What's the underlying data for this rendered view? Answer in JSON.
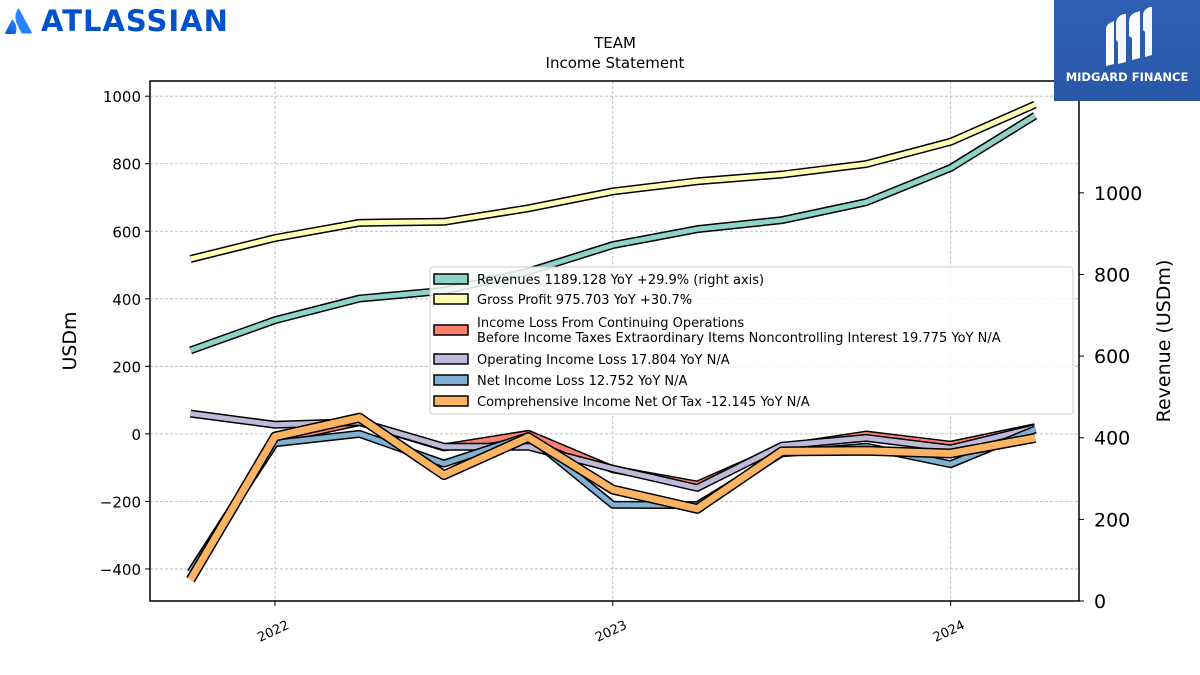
{
  "brand_left": {
    "name": "ATLASSIAN",
    "color": "#0052cc"
  },
  "brand_right": {
    "name": "MIDGARD FINANCE",
    "bg": "#2a58a8"
  },
  "chart_data": {
    "type": "line",
    "title": "TEAM",
    "subtitle": "Income Statement",
    "ylabel_left": "USDm",
    "ylabel_right": "Revenue (USDm)",
    "ylim_left": [
      -495,
      1045
    ],
    "ylim_right": [
      0,
      1274
    ],
    "yticks_left": [
      -400,
      -200,
      0,
      200,
      400,
      600,
      800,
      1000
    ],
    "yticks_left_labels": [
      "−400",
      "−200",
      "0",
      "200",
      "400",
      "600",
      "800",
      "1000"
    ],
    "yticks_right": [
      0,
      200,
      400,
      600,
      800,
      1000
    ],
    "xlim": [
      2021.63,
      2024.38
    ],
    "xticks": [
      2022,
      2023,
      2024
    ],
    "xtick_labels": [
      "2022",
      "2023",
      "2024"
    ],
    "x": [
      2021.75,
      2022.0,
      2022.25,
      2022.5,
      2022.75,
      2023.0,
      2023.25,
      2023.5,
      2023.75,
      2024.0,
      2024.25
    ],
    "grid": true,
    "legend_position": "center",
    "series": [
      {
        "name": "Revenues",
        "legend": "Revenues  1189.128 YoY +29.9% (right axis)",
        "color": "#8dd3c7",
        "axis": "right",
        "width": 5,
        "values": [
          614,
          688,
          741,
          760,
          807,
          872,
          911,
          933,
          977,
          1061,
          1189
        ]
      },
      {
        "name": "Gross Profit",
        "legend": "Gross Profit  975.703 YoY +30.7%",
        "color": "#ffffb3",
        "axis": "left",
        "width": 5,
        "values": [
          518,
          580,
          625,
          628,
          668,
          718,
          748,
          768,
          799,
          865,
          975
        ]
      },
      {
        "name": "Income Loss From Continuing Operations Before Income Taxes Extraordinary Items Noncontrolling Interest",
        "legend_lines": [
          "Income Loss From Continuing Operations",
          "Before Income Taxes Extraordinary Items Noncontrolling Interest  19.775 YoY N/A"
        ],
        "color": "#fb8072",
        "axis": "left",
        "width": 5,
        "values": [
          -410,
          -20,
          35,
          -40,
          0,
          -105,
          -150,
          -40,
          -2,
          -32,
          20
        ]
      },
      {
        "name": "Operating Income Loss",
        "legend": "Operating Income Loss  17.804 YoY N/A",
        "color": "#bebada",
        "axis": "left",
        "width": 5,
        "values": [
          60,
          27,
          35,
          -38,
          -38,
          -103,
          -160,
          -35,
          -12,
          -43,
          18
        ]
      },
      {
        "name": "Net Income Loss",
        "legend": "Net Income Loss  12.752 YoY N/A",
        "color": "#80b1d3",
        "axis": "left",
        "width": 5,
        "values": [
          -410,
          -28,
          0,
          -88,
          -6,
          -210,
          -211,
          -58,
          -38,
          -90,
          13
        ]
      },
      {
        "name": "Comprehensive Income Net Of Tax",
        "legend": "Comprehensive Income Net Of Tax  -12.145 YoY N/A",
        "color": "#fdb462",
        "axis": "left",
        "width": 7,
        "values": [
          -432,
          -8,
          48,
          -122,
          -10,
          -165,
          -222,
          -52,
          -50,
          -58,
          -12
        ]
      }
    ]
  }
}
